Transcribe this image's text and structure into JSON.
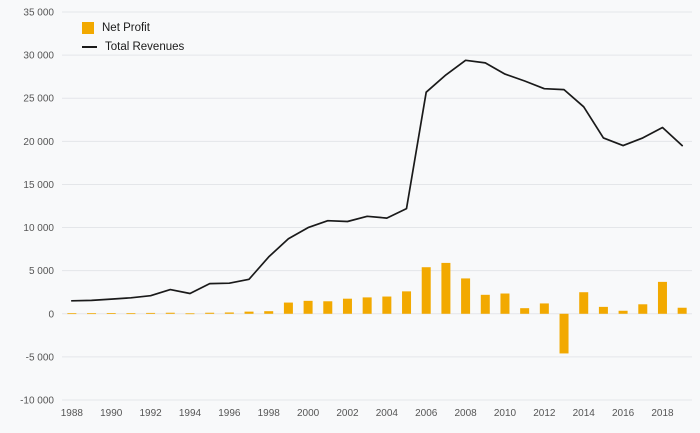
{
  "chart_data": {
    "type": "bar",
    "subtype": "bar-and-line-combo",
    "x": [
      1988,
      1989,
      1990,
      1991,
      1992,
      1993,
      1994,
      1995,
      1996,
      1997,
      1998,
      1999,
      2000,
      2001,
      2002,
      2003,
      2004,
      2005,
      2006,
      2007,
      2008,
      2009,
      2010,
      2011,
      2012,
      2013,
      2014,
      2015,
      2016,
      2017,
      2018,
      2019
    ],
    "series": [
      {
        "name": "Net Profit",
        "type": "bar",
        "color": "#F2A900",
        "values": [
          60,
          60,
          70,
          60,
          100,
          120,
          50,
          120,
          150,
          250,
          300,
          1300,
          1500,
          1450,
          1750,
          1900,
          2000,
          2600,
          5400,
          5900,
          4100,
          2200,
          2350,
          650,
          1200,
          -4600,
          2500,
          800,
          350,
          1100,
          3700,
          700
        ]
      },
      {
        "name": "Total Revenues",
        "type": "line",
        "color": "#1a1a1a",
        "values": [
          1500,
          1550,
          1700,
          1850,
          2100,
          2800,
          2350,
          3500,
          3550,
          4000,
          6600,
          8700,
          10000,
          10800,
          10700,
          11300,
          11100,
          12200,
          25700,
          27700,
          29400,
          29100,
          27800,
          27000,
          26100,
          26000,
          24000,
          20400,
          19500,
          20400,
          21600,
          19500
        ]
      }
    ],
    "title": "",
    "xlabel": "",
    "ylabel": "",
    "ylim": [
      -10000,
      35000
    ],
    "ytick_step": 5000,
    "xtick_labels": [
      "1988",
      "1990",
      "1992",
      "1994",
      "1996",
      "1998",
      "2000",
      "2002",
      "2004",
      "2006",
      "2008",
      "2010",
      "2012",
      "2014",
      "2016",
      "2018"
    ],
    "grid": "horizontal",
    "legend_position": "top-left",
    "background_color": "#f8f9fa",
    "bar_color": "#F2A900",
    "line_color": "#1a1a1a"
  }
}
